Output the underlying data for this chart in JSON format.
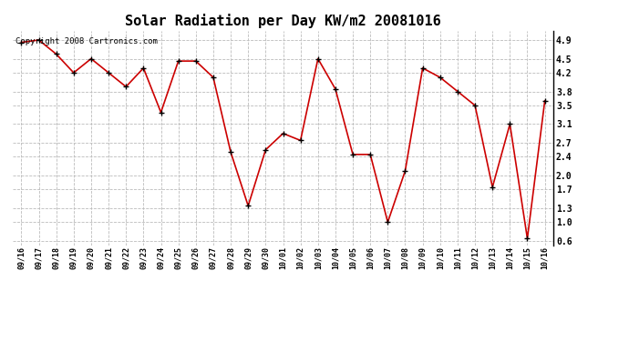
{
  "title": "Solar Radiation per Day KW/m2 20081016",
  "copyright": "Copyright 2008 Cartronics.com",
  "labels": [
    "09/16",
    "09/17",
    "09/18",
    "09/19",
    "09/20",
    "09/21",
    "09/22",
    "09/23",
    "09/24",
    "09/25",
    "09/26",
    "09/27",
    "09/28",
    "09/29",
    "09/30",
    "10/01",
    "10/02",
    "10/03",
    "10/04",
    "10/05",
    "10/06",
    "10/07",
    "10/08",
    "10/09",
    "10/10",
    "10/11",
    "10/12",
    "10/13",
    "10/14",
    "10/15",
    "10/16"
  ],
  "values": [
    4.85,
    4.9,
    4.6,
    4.2,
    4.5,
    4.2,
    3.9,
    4.3,
    3.35,
    4.45,
    4.45,
    4.1,
    2.5,
    1.35,
    2.55,
    2.9,
    2.75,
    4.5,
    3.85,
    2.45,
    2.45,
    1.0,
    2.1,
    4.3,
    4.1,
    3.8,
    3.5,
    1.75,
    3.1,
    0.65,
    3.6
  ],
  "line_color": "#cc0000",
  "marker": "+",
  "marker_size": 5,
  "marker_color": "#000000",
  "bg_color": "#ffffff",
  "grid_color": "#bbbbbb",
  "ylim": [
    0.5,
    5.1
  ],
  "yticks": [
    0.6,
    1.0,
    1.3,
    1.7,
    2.0,
    2.4,
    2.7,
    3.1,
    3.5,
    3.8,
    4.2,
    4.5,
    4.9
  ],
  "title_fontsize": 11,
  "copyright_fontsize": 6.5,
  "xtick_fontsize": 6,
  "ytick_fontsize": 7
}
